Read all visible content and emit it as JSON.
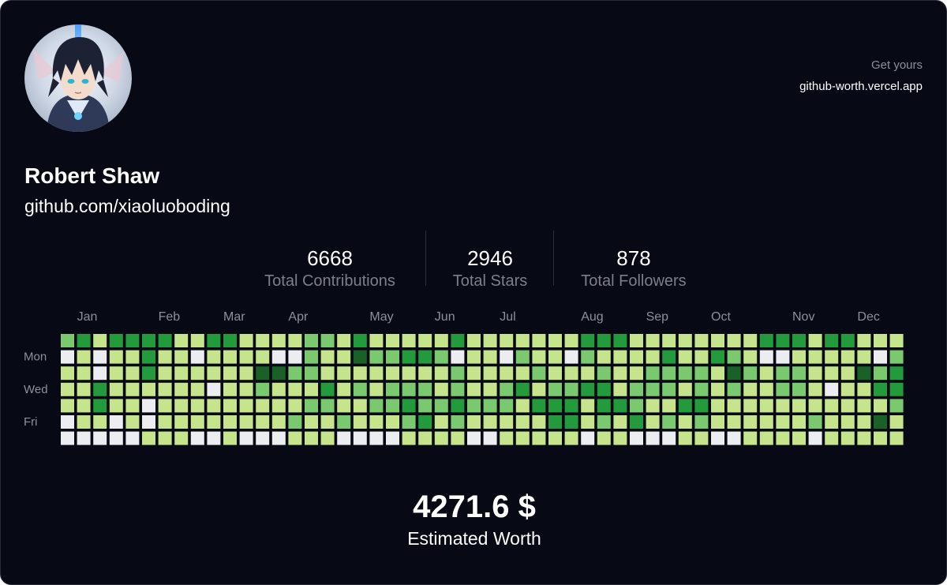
{
  "header": {
    "get_yours_label": "Get yours",
    "link_text": "github-worth.vercel.app"
  },
  "profile": {
    "name": "Robert Shaw",
    "url": "github.com/xiaoluoboding",
    "avatar_icon": "anime-character-avatar"
  },
  "stats": [
    {
      "value": "6668",
      "label": "Total Contributions"
    },
    {
      "value": "2946",
      "label": "Total Stars"
    },
    {
      "value": "878",
      "label": "Total Followers"
    }
  ],
  "graph": {
    "months": [
      {
        "label": "Jan",
        "week": 1
      },
      {
        "label": "Feb",
        "week": 6
      },
      {
        "label": "Mar",
        "week": 10
      },
      {
        "label": "Apr",
        "week": 14
      },
      {
        "label": "May",
        "week": 19
      },
      {
        "label": "Jun",
        "week": 23
      },
      {
        "label": "Jul",
        "week": 27
      },
      {
        "label": "Aug",
        "week": 32
      },
      {
        "label": "Sep",
        "week": 36
      },
      {
        "label": "Oct",
        "week": 40
      },
      {
        "label": "Nov",
        "week": 45
      },
      {
        "label": "Dec",
        "week": 49
      }
    ],
    "day_labels": [
      {
        "label": "Mon",
        "row": 1
      },
      {
        "label": "Wed",
        "row": 3
      },
      {
        "label": "Fri",
        "row": 5
      }
    ],
    "levels": [
      "2313333113311112213111113111111133311111111333133111",
      "0101131101111002114223320110211021111311321001111102",
      "1101131111114422111111112111121112112222142122111423",
      "1131111110112111312122212112312233122212121122101133",
      "1131101111111112211223223222133313321133111111111112",
      "0110101111111121121112312111113312131212111111211141",
      "0000011100100011100001111001111101100011001111011111"
    ],
    "level_colors": [
      "#ebedf0",
      "#c6e48b",
      "#7bc96f",
      "#239a3b",
      "#196127"
    ]
  },
  "worth": {
    "value": "4271.6 $",
    "label": "Estimated Worth"
  }
}
